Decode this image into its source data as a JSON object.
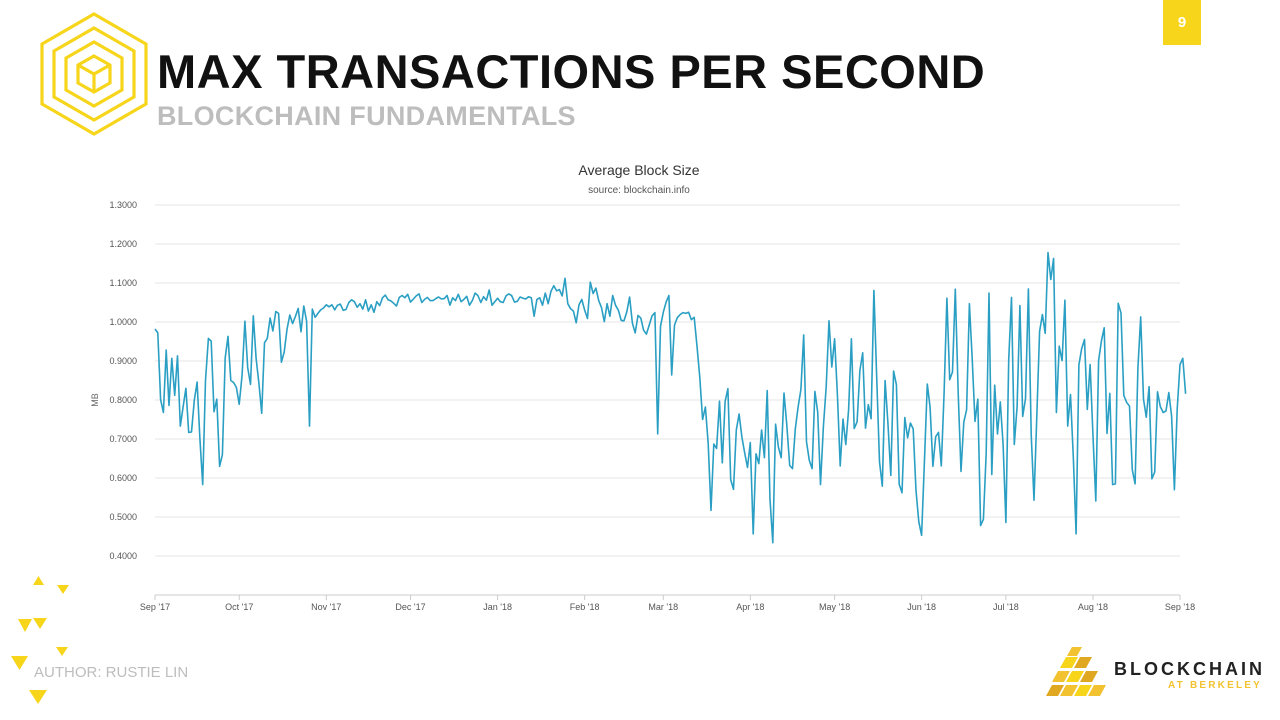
{
  "slide": {
    "page_number": "9",
    "title": "MAX TRANSACTIONS PER SECOND",
    "subtitle": "BLOCKCHAIN FUNDAMENTALS",
    "author": "AUTHOR: RUSTIE LIN",
    "brand": {
      "name": "BLOCKCHAIN",
      "sub": "AT BERKELEY"
    },
    "accent_color": "#f7d51b",
    "logo_icon": "cube-hexagon-logo-icon",
    "brand_icon": "blockchain-at-berkeley-logo-icon"
  },
  "chart_data": {
    "type": "line",
    "title": "Average Block Size",
    "subtitle": "source: blockchain.info",
    "ylabel": "MB",
    "xlabel": "",
    "ylim": [
      0.3,
      1.3
    ],
    "yticks": [
      "0.4000",
      "0.5000",
      "0.6000",
      "0.7000",
      "0.8000",
      "0.9000",
      "1.0000",
      "1.1000",
      "1.2000",
      "1.3000"
    ],
    "xticks": [
      {
        "label": "Sep '17",
        "day": 0
      },
      {
        "label": "Oct '17",
        "day": 30
      },
      {
        "label": "Nov '17",
        "day": 61
      },
      {
        "label": "Dec '17",
        "day": 91
      },
      {
        "label": "Jan '18",
        "day": 122
      },
      {
        "label": "Feb '18",
        "day": 153
      },
      {
        "label": "Mar '18",
        "day": 181
      },
      {
        "label": "Apr '18",
        "day": 212
      },
      {
        "label": "May '18",
        "day": 242
      },
      {
        "label": "Jun '18",
        "day": 273
      },
      {
        "label": "Jul '18",
        "day": 303
      },
      {
        "label": "Aug '18",
        "day": 334
      },
      {
        "label": "Sep '18",
        "day": 365
      }
    ],
    "series_color": "#2a9fc3",
    "grid": true,
    "legend": "none",
    "series": [
      {
        "x_start": "2017-08-31",
        "x_step_days": 1,
        "values": [
          0.982,
          0.972,
          0.801,
          0.768,
          0.928,
          0.786,
          0.907,
          0.812,
          0.913,
          0.733,
          0.782,
          0.83,
          0.717,
          0.718,
          0.799,
          0.846,
          0.701,
          0.583,
          0.85,
          0.958,
          0.951,
          0.77,
          0.802,
          0.63,
          0.66,
          0.908,
          0.963,
          0.85,
          0.845,
          0.832,
          0.789,
          0.864,
          1.002,
          0.883,
          0.84,
          1.016,
          0.907,
          0.843,
          0.766,
          0.947,
          0.958,
          1.01,
          0.977,
          1.027,
          1.022,
          0.897,
          0.923,
          0.981,
          1.018,
          0.996,
          1.014,
          1.035,
          0.975,
          1.041,
          1.002,
          0.733,
          1.033,
          1.012,
          1.022,
          1.031,
          1.036,
          1.044,
          1.039,
          1.044,
          1.031,
          1.043,
          1.046,
          1.03,
          1.032,
          1.05,
          1.057,
          1.052,
          1.038,
          1.047,
          1.033,
          1.057,
          1.028,
          1.044,
          1.025,
          1.052,
          1.042,
          1.062,
          1.069,
          1.057,
          1.054,
          1.048,
          1.041,
          1.063,
          1.068,
          1.062,
          1.071,
          1.051,
          1.059,
          1.067,
          1.072,
          1.05,
          1.058,
          1.063,
          1.055,
          1.055,
          1.06,
          1.064,
          1.059,
          1.06,
          1.068,
          1.043,
          1.062,
          1.055,
          1.071,
          1.052,
          1.058,
          1.066,
          1.043,
          1.055,
          1.074,
          1.068,
          1.05,
          1.065,
          1.056,
          1.082,
          1.043,
          1.052,
          1.061,
          1.052,
          1.05,
          1.067,
          1.072,
          1.068,
          1.051,
          1.053,
          1.064,
          1.061,
          1.059,
          1.065,
          1.062,
          1.015,
          1.058,
          1.062,
          1.043,
          1.074,
          1.047,
          1.079,
          1.093,
          1.08,
          1.083,
          1.067,
          1.112,
          1.047,
          1.034,
          1.028,
          0.998,
          1.044,
          1.058,
          1.03,
          1.009,
          1.102,
          1.073,
          1.087,
          1.055,
          1.037,
          1.001,
          1.047,
          1.015,
          1.068,
          1.043,
          1.03,
          1.004,
          1.003,
          1.026,
          1.064,
          0.997,
          0.972,
          1.017,
          1.01,
          0.979,
          0.969,
          0.992,
          1.016,
          1.024,
          0.713,
          0.989,
          1.025,
          1.051,
          1.068,
          0.864,
          0.992,
          1.011,
          1.019,
          1.024,
          1.022,
          1.025,
          1.006,
          1.012,
          0.938,
          0.858,
          0.75,
          0.782,
          0.688,
          0.517,
          0.687,
          0.676,
          0.797,
          0.639,
          0.796,
          0.829,
          0.596,
          0.571,
          0.723,
          0.764,
          0.705,
          0.664,
          0.627,
          0.691,
          0.457,
          0.662,
          0.637,
          0.723,
          0.652,
          0.824,
          0.545,
          0.434,
          0.738,
          0.679,
          0.652,
          0.818,
          0.736,
          0.632,
          0.624,
          0.726,
          0.782,
          0.827,
          0.967,
          0.693,
          0.645,
          0.624,
          0.822,
          0.769,
          0.583,
          0.732,
          0.834,
          1.003,
          0.885,
          0.957,
          0.814,
          0.631,
          0.751,
          0.686,
          0.775,
          0.957,
          0.727,
          0.744,
          0.876,
          0.921,
          0.728,
          0.788,
          0.752,
          1.081,
          0.858,
          0.642,
          0.579,
          0.85,
          0.742,
          0.607,
          0.874,
          0.839,
          0.584,
          0.562,
          0.755,
          0.703,
          0.741,
          0.726,
          0.568,
          0.488,
          0.453,
          0.647,
          0.841,
          0.781,
          0.63,
          0.706,
          0.717,
          0.631,
          0.818,
          1.061,
          0.852,
          0.872,
          1.084,
          0.818,
          0.617,
          0.743,
          0.775,
          1.047,
          0.906,
          0.745,
          0.802,
          0.478,
          0.494,
          0.664,
          1.074,
          0.609,
          0.838,
          0.713,
          0.795,
          0.686,
          0.486,
          0.902,
          1.063,
          0.686,
          0.783,
          1.042,
          0.758,
          0.803,
          1.085,
          0.712,
          0.543,
          0.758,
          0.976,
          1.019,
          0.971,
          1.178,
          1.109,
          1.163,
          0.768,
          0.938,
          0.901,
          1.056,
          0.733,
          0.814,
          0.654,
          0.457,
          0.89,
          0.932,
          0.955,
          0.776,
          0.891,
          0.713,
          0.541,
          0.901,
          0.951,
          0.985,
          0.714,
          0.817,
          0.583,
          0.585,
          1.048,
          1.023,
          0.812,
          0.794,
          0.784,
          0.621,
          0.585,
          0.882,
          1.013,
          0.802,
          0.756,
          0.834,
          0.598,
          0.615,
          0.821,
          0.783,
          0.768,
          0.772,
          0.819,
          0.759,
          0.57,
          0.777,
          0.891,
          0.907,
          0.816
        ]
      }
    ]
  }
}
